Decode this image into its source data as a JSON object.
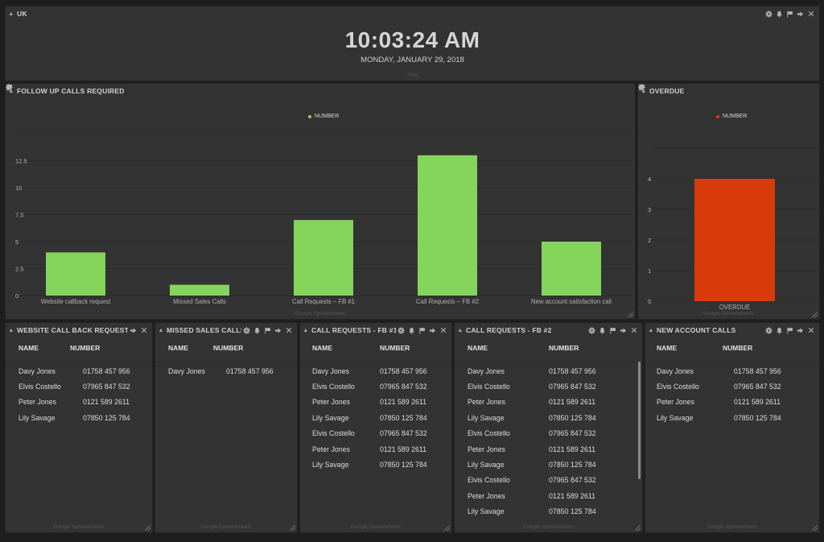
{
  "uk": {
    "title": "UK",
    "time": "10:03:24 AM",
    "date": "MONDAY, JANUARY 29, 2018",
    "footer": "Time"
  },
  "follow": {
    "title": "FOLLOW UP CALLS REQUIRED",
    "legend": "NUMBER",
    "footer": "Google Spreadsheets"
  },
  "overdue": {
    "title": "OVERDUE",
    "legend": "NUMBER",
    "footer": "Google Spreadsheets"
  },
  "chart_data": [
    {
      "type": "bar",
      "title": "FOLLOW UP CALLS REQUIRED",
      "categories": [
        "Website callback request",
        "Missed Sales Calls",
        "Call Requests – FB #1",
        "Call Requests – FB #2",
        "New account satisfaction call"
      ],
      "series": [
        {
          "name": "NUMBER",
          "values": [
            4,
            1,
            7,
            13,
            5
          ]
        }
      ],
      "yticks": [
        "0",
        "2.5",
        "5",
        "7.5",
        "10",
        "12.5"
      ],
      "ylim": [
        0,
        15
      ],
      "color": "#85d45c",
      "grid": true,
      "legend": "top-center"
    },
    {
      "type": "bar",
      "title": "OVERDUE",
      "categories": [
        "OVERDUE"
      ],
      "series": [
        {
          "name": "NUMBER",
          "values": [
            4
          ]
        }
      ],
      "yticks": [
        "0",
        "1",
        "2",
        "3",
        "4"
      ],
      "ylim": [
        0,
        5
      ],
      "color": "#d83a0c",
      "grid": true,
      "legend": "top-center"
    }
  ],
  "tables": {
    "website": {
      "title": "WEBSITE CALL BACK REQUEST",
      "col_name": "NAME",
      "col_number": "NUMBER",
      "footer": "Google Spreadsheets",
      "rows": [
        [
          "Davy Jones",
          "01758 457 956"
        ],
        [
          "Elvis Costello",
          "07965 847 532"
        ],
        [
          "Peter Jones",
          "0121 589 2611"
        ],
        [
          "Lily Savage",
          "07850 125 784"
        ]
      ]
    },
    "missed": {
      "title": "MISSED SALES CALLS",
      "col_name": "NAME",
      "col_number": "NUMBER",
      "footer": "Google Spreadsheets",
      "rows": [
        [
          "Davy Jones",
          "01758 457 956"
        ]
      ]
    },
    "fb1": {
      "title": "CALL REQUESTS - FB #1",
      "col_name": "NAME",
      "col_number": "NUMBER",
      "footer": "Google Spreadsheets",
      "rows": [
        [
          "Davy Jones",
          "01758 457 956"
        ],
        [
          "Elvis Costello",
          "07965 847 532"
        ],
        [
          "Peter Jones",
          "0121 589 2611"
        ],
        [
          "Lily Savage",
          "07850 125 784"
        ],
        [
          "Elvis Costello",
          "07965 847 532"
        ],
        [
          "Peter Jones",
          "0121 589 2611"
        ],
        [
          "Lily Savage",
          "07850 125 784"
        ]
      ]
    },
    "fb2": {
      "title": "CALL REQUESTS - FB #2",
      "col_name": "NAME",
      "col_number": "NUMBER",
      "footer": "Google Spreadsheets",
      "rows": [
        [
          "Davy Jones",
          "01758 457 956"
        ],
        [
          "Elvis Costello",
          "07965 847 532"
        ],
        [
          "Peter Jones",
          "0121 589 2611"
        ],
        [
          "Lily Savage",
          "07850 125 784"
        ],
        [
          "Elvis Costello",
          "07965 847 532"
        ],
        [
          "Peter Jones",
          "0121 589 2611"
        ],
        [
          "Lily Savage",
          "07850 125 784"
        ],
        [
          "Elvis Costello",
          "07965 847 532"
        ],
        [
          "Peter Jones",
          "0121 589 2611"
        ],
        [
          "Lily Savage",
          "07850 125 784"
        ]
      ]
    },
    "newacct": {
      "title": "NEW ACCOUNT CALLS",
      "col_name": "NAME",
      "col_number": "NUMBER",
      "footer": "Google Spreadsheets",
      "rows": [
        [
          "Davy Jones",
          "01758 457 956"
        ],
        [
          "Elvis Costello",
          "07965 847 532"
        ],
        [
          "Peter Jones",
          "0121 589 2611"
        ],
        [
          "Lily Savage",
          "07850 125 784"
        ]
      ]
    }
  },
  "icons": [
    "gear-icon",
    "bell-icon",
    "flag-icon",
    "arrow-right-icon",
    "close-icon",
    "collapse-caret-icon",
    "resize-handle-icon"
  ]
}
